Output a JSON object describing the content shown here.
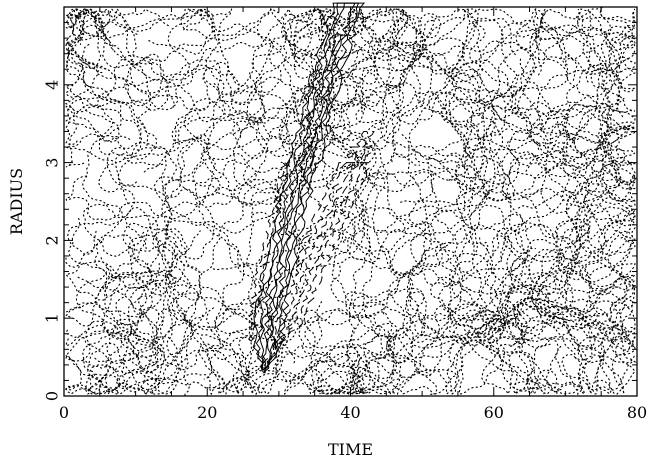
{
  "chart_data": {
    "type": "contour",
    "title": "",
    "xlabel": "TIME",
    "ylabel": "RADIUS",
    "xlim": [
      0,
      80
    ],
    "ylim": [
      0,
      5
    ],
    "grid": false,
    "x_ticks": [
      "0",
      "20",
      "40",
      "60",
      "80"
    ],
    "y_ticks": [
      "0",
      "1",
      "2",
      "3",
      "4"
    ],
    "line_styles": {
      "positive": "solid",
      "negative": "dashed",
      "zero": "dotted"
    },
    "ridge": {
      "description_points": [
        [
          28.0,
          0.3
        ],
        [
          28.3,
          0.6
        ],
        [
          28.8,
          1.0
        ],
        [
          29.6,
          1.5
        ],
        [
          30.8,
          2.0
        ],
        [
          32.4,
          2.6
        ],
        [
          33.8,
          3.1
        ],
        [
          35.2,
          3.6
        ],
        [
          36.6,
          4.1
        ],
        [
          38.2,
          4.6
        ],
        [
          39.6,
          5.0
        ]
      ],
      "contour_halfwidths": [
        0.3,
        0.75,
        1.3,
        2.0
      ]
    },
    "negative_lobe": {
      "description_points": [
        [
          29.5,
          0.6
        ],
        [
          31.3,
          1.0
        ],
        [
          33.5,
          1.5
        ],
        [
          35.8,
          2.0
        ],
        [
          38.2,
          2.5
        ],
        [
          40.6,
          3.0
        ]
      ],
      "contour_halfwidths": [
        0.5,
        1.3,
        2.2
      ]
    }
  }
}
